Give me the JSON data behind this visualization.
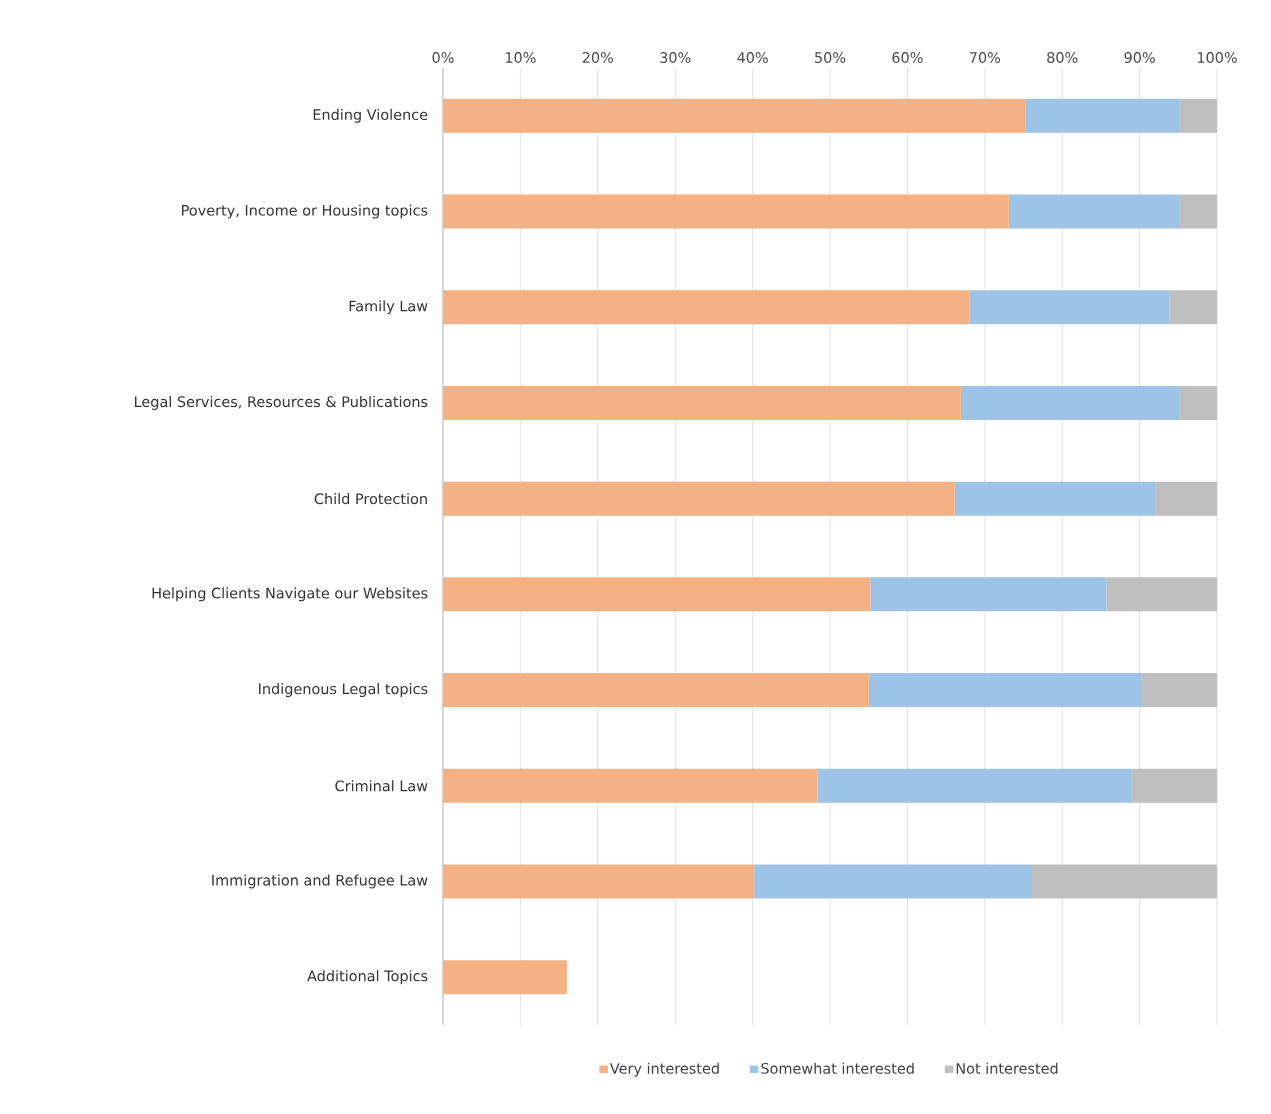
{
  "chart_data": {
    "type": "bar",
    "orientation": "horizontal",
    "stacked": true,
    "categories": [
      "Ending Violence",
      "Poverty, Income or Housing topics",
      "Family Law",
      "Legal Services, Resources & Publications",
      "Child Protection",
      "Helping Clients Navigate our Websites",
      "Indigenous Legal topics",
      "Criminal Law",
      "Immigration and Refugee Law",
      "Additional Topics"
    ],
    "series": [
      {
        "name": "Very interested",
        "color": "#f4b183",
        "values": [
          75.3,
          73.1,
          68.0,
          66.9,
          66.1,
          55.2,
          55.0,
          48.4,
          40.2,
          16.0
        ]
      },
      {
        "name": "Somewhat interested",
        "color": "#9dc3e6",
        "values": [
          19.8,
          22.0,
          25.9,
          28.3,
          26.0,
          30.5,
          35.3,
          40.6,
          35.9,
          0
        ]
      },
      {
        "name": "Not interested",
        "color": "#bfbfbf",
        "values": [
          4.9,
          4.9,
          6.1,
          4.8,
          7.9,
          14.3,
          9.7,
          11.0,
          23.9,
          0
        ]
      }
    ],
    "xlim": [
      0,
      100
    ],
    "xticks": [
      {
        "value": 0,
        "label": "0%"
      },
      {
        "value": 10,
        "label": "10%"
      },
      {
        "value": 20,
        "label": "20%"
      },
      {
        "value": 30,
        "label": "30%"
      },
      {
        "value": 40,
        "label": "40%"
      },
      {
        "value": 50,
        "label": "50%"
      },
      {
        "value": 60,
        "label": "60%"
      },
      {
        "value": 70,
        "label": "70%"
      },
      {
        "value": 80,
        "label": "80%"
      },
      {
        "value": 90,
        "label": "90%"
      },
      {
        "value": 100,
        "label": "100%"
      }
    ],
    "grid": "x",
    "legend": "bottom"
  }
}
